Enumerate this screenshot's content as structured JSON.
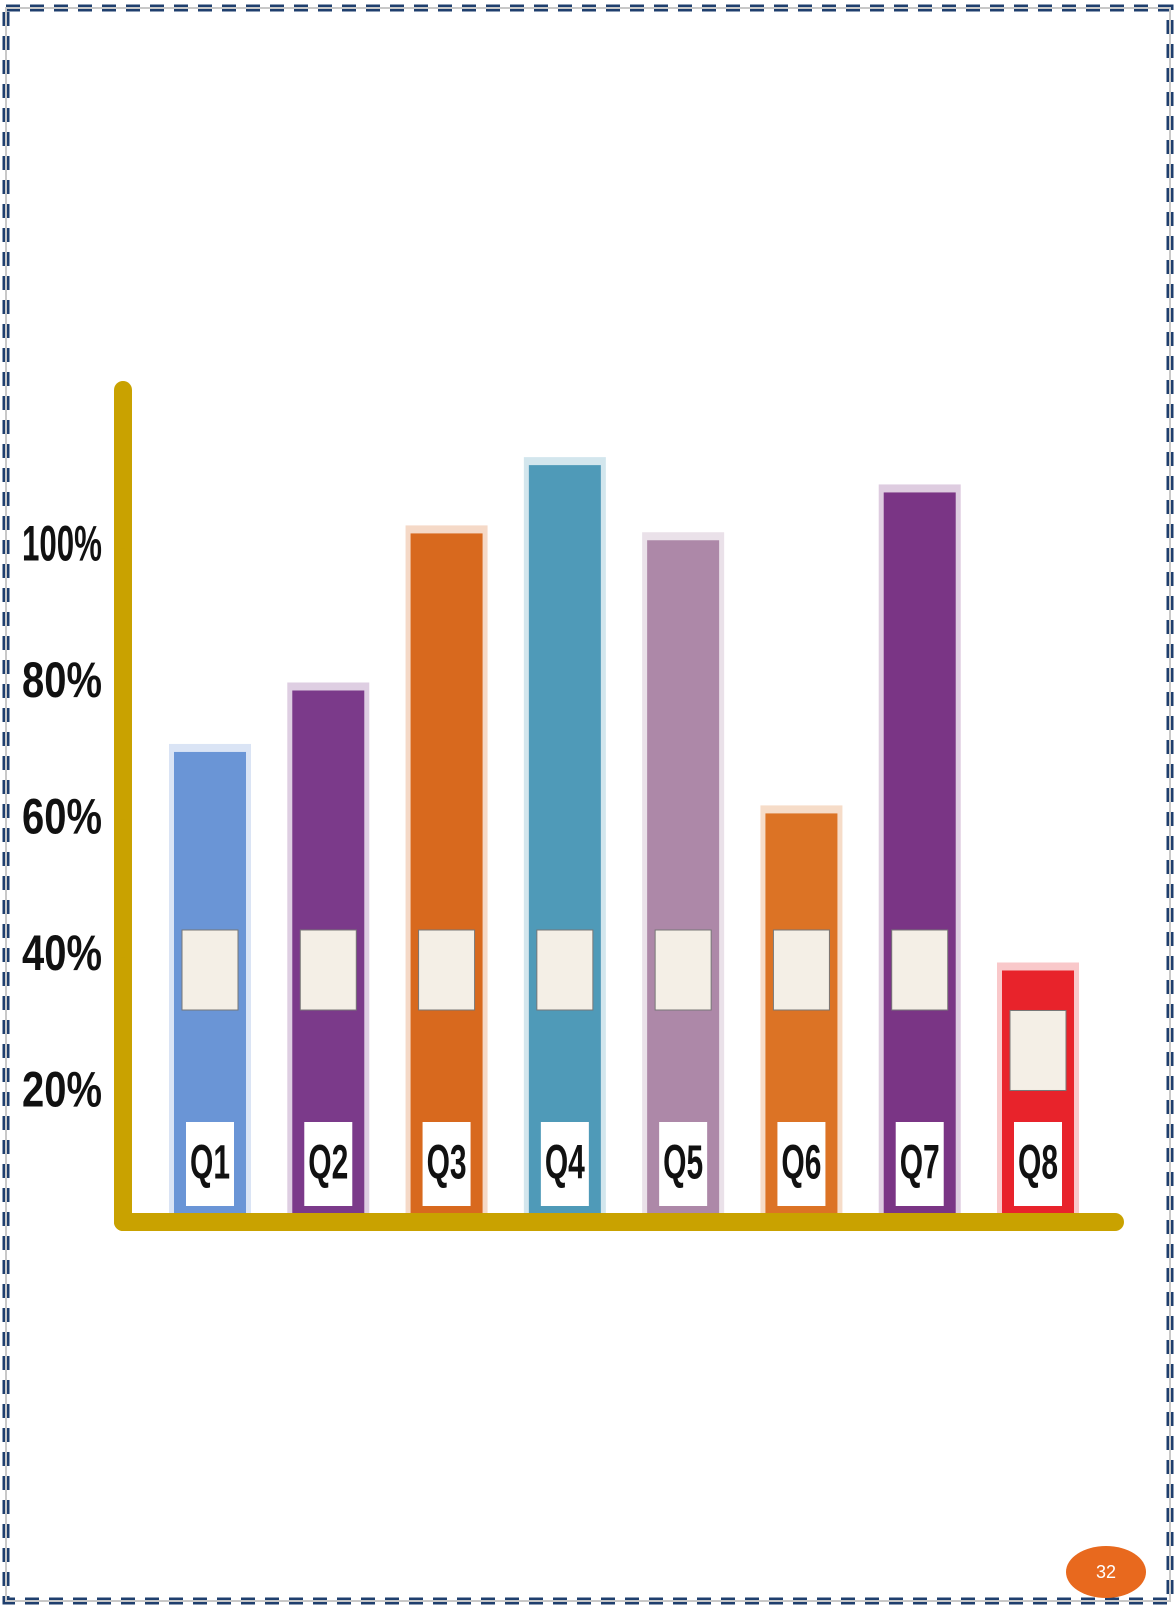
{
  "chart_data": {
    "type": "bar",
    "categories": [
      "Q1",
      "Q2",
      "Q3",
      "Q4",
      "Q5",
      "Q6",
      "Q7",
      "Q8"
    ],
    "values": [
      70,
      79,
      102,
      112,
      101,
      61,
      108,
      38
    ],
    "colors": [
      "#6a95d6",
      "#7b3a8a",
      "#d8691e",
      "#4f9ab8",
      "#ad88a8",
      "#dc7325",
      "#7a3585",
      "#e8232b"
    ],
    "ylim": [
      0,
      123
    ],
    "yticks": [
      {
        "value": 20,
        "label": "20%"
      },
      {
        "value": 40,
        "label": "40%"
      },
      {
        "value": 60,
        "label": "60%"
      },
      {
        "value": 80,
        "label": "80%"
      },
      {
        "value": 100,
        "label": "100%"
      }
    ],
    "axis_color": "#c9a200"
  },
  "page_number": "32"
}
